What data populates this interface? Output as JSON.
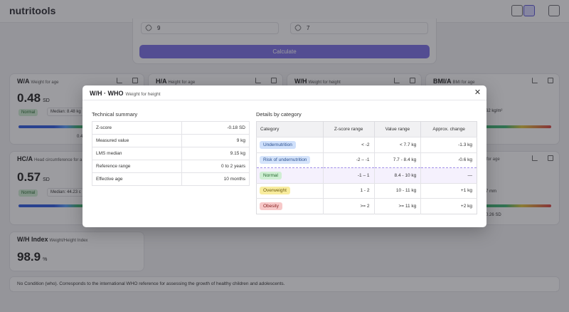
{
  "app": {
    "logo": "nutritools"
  },
  "calc": {
    "input_left": "9",
    "input_right": "7",
    "button_label": "Calculate"
  },
  "cards": {
    "wa": {
      "title": "W/A",
      "subtitle": "Weight for age",
      "value": "0.48",
      "unit": "SD",
      "badge": "Normal",
      "median": "Median: 8.48 kg",
      "tick": "0.4"
    },
    "ha": {
      "title": "H/A",
      "subtitle": "Height for age"
    },
    "wh": {
      "title": "W/H",
      "subtitle": "Weight for height"
    },
    "bmia": {
      "title": "BMI/A",
      "subtitle": "BMI for age",
      "median_frag": "62 kg/m²"
    },
    "hca": {
      "title": "HC/A",
      "subtitle": "Head circumference for a",
      "value": "0.57",
      "unit": "SD",
      "badge": "Normal",
      "median": "Median: 44.23 c"
    },
    "right_lower": {
      "subtitle_frag": "d for age",
      "median_frag": "7 mm",
      "tick": "0.26 SD"
    },
    "whi": {
      "title": "W/H Index",
      "subtitle": "Weight/Height Index",
      "value": "98.9",
      "unit": "%"
    }
  },
  "footer_note": "No Condition (who). Corresponds to the international WHO reference for assessing the growth of healthy children and adolescents.",
  "modal": {
    "title": "W/H · WHO",
    "subtitle": "Weight for height",
    "close_glyph": "✕",
    "summary_title": "Technical summary",
    "summary_rows": [
      {
        "label": "Z-score",
        "value": "-0.18 SD"
      },
      {
        "label": "Measured value",
        "value": "9 kg"
      },
      {
        "label": "LMS median",
        "value": "9.15 kg"
      },
      {
        "label": "Reference range",
        "value": "0 to 2 years"
      },
      {
        "label": "Effective age",
        "value": "10 months"
      }
    ],
    "details_title": "Details by category",
    "details_headers": [
      "Category",
      "Z-score range",
      "Value range",
      "Approx. change"
    ],
    "details_rows": [
      {
        "category": "Undernutrition",
        "z": "< -2",
        "value": "< 7.7 kg",
        "change": "-1.3 kg",
        "bg": "#cfe0fb",
        "fg": "#2a4f8f"
      },
      {
        "category": "Risk of undernutrition",
        "z": "-2 – -1",
        "value": "7.7 - 8.4 kg",
        "change": "-0.6 kg",
        "bg": "#d5e4fb",
        "fg": "#2a4f8f"
      },
      {
        "category": "Normal",
        "z": "-1 – 1",
        "value": "8.4 - 10 kg",
        "change": "—",
        "bg": "#cfeed3",
        "fg": "#256a2f"
      },
      {
        "category": "Overweight",
        "z": "1 - 2",
        "value": "10 - 11 kg",
        "change": "+1 kg",
        "bg": "#f8ec9e",
        "fg": "#6e5c10"
      },
      {
        "category": "Obesity",
        "z": ">= 2",
        "value": ">= 11 kg",
        "change": "+2 kg",
        "bg": "#f7c9c9",
        "fg": "#8a2424"
      }
    ]
  }
}
